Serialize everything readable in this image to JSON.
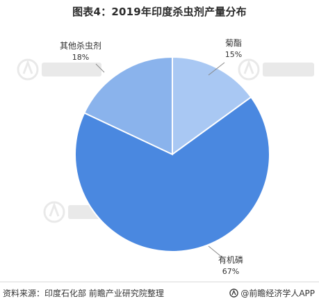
{
  "title": "图表4：2019年印度杀虫剂产量分布",
  "chart_data": {
    "type": "pie",
    "categories": [
      "菊酯",
      "有机磷",
      "其他杀虫剂"
    ],
    "values": [
      15,
      67,
      18
    ],
    "value_labels": [
      "15%",
      "67%",
      "18%"
    ],
    "colors": [
      "#a9c8f3",
      "#4a88e0",
      "#8ab3ec"
    ],
    "start_angle_deg": 0,
    "direction": "clockwise",
    "legend": "none"
  },
  "footer": {
    "source": "资料来源：印度石化部 前瞻产业研究院整理",
    "brand": "@前瞻经济学人APP"
  },
  "icons": {
    "brand_logo": "qianzhan-logo-icon",
    "watermark": "qianzhan-watermark-icon"
  }
}
